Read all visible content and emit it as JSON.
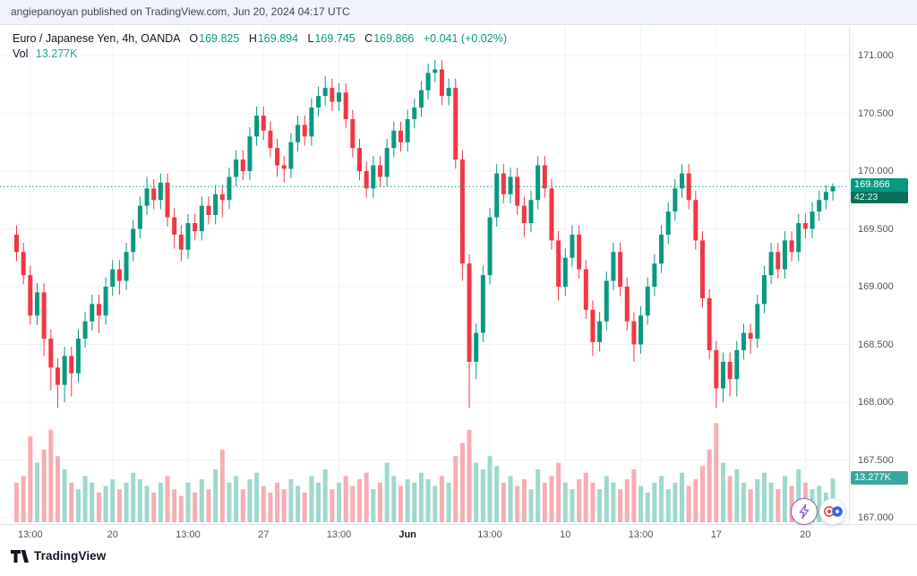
{
  "attribution": {
    "text": "angiepanoyan published on TradingView.com, Jun 20, 2024 04:17 UTC"
  },
  "legend": {
    "symbol": "Euro / Japanese Yen, 4h, OANDA",
    "open_label": "O",
    "open": "169.825",
    "high_label": "H",
    "high": "169.894",
    "low_label": "L",
    "low": "169.745",
    "close_label": "C",
    "close": "169.866",
    "change": "+0.041 (+0.02%)",
    "vol_label": "Vol",
    "vol_value": "13.277K"
  },
  "badges": {
    "price_value": "169.866",
    "countdown": "42:23",
    "volume_value": "13.277K"
  },
  "footer": {
    "brand": "TradingView"
  },
  "colors": {
    "up": "#089981",
    "down": "#f23645",
    "vol_up": "#9ed9cd",
    "vol_down": "#f6aeb3",
    "grid": "#f0f3fa",
    "axis_border": "#e0e3eb",
    "price_badge": "#089981",
    "volume_badge": "#3aa6a0"
  },
  "chart_data": {
    "type": "candlestick",
    "title": "Euro / Japanese Yen, 4h, OANDA",
    "interval": "4h",
    "last_price": 169.866,
    "last_volume_label": "13.277K",
    "price_range": [
      167.0,
      171.0
    ],
    "y_ticks": [
      {
        "label": "171.000",
        "value": 171.0
      },
      {
        "label": "170.500",
        "value": 170.5
      },
      {
        "label": "170.000",
        "value": 170.0
      },
      {
        "label": "169.500",
        "value": 169.5
      },
      {
        "label": "169.000",
        "value": 169.0
      },
      {
        "label": "168.500",
        "value": 168.5
      },
      {
        "label": "168.000",
        "value": 168.0
      },
      {
        "label": "167.500",
        "value": 167.5
      },
      {
        "label": "167.000",
        "value": 167.0
      }
    ],
    "time_ticks": [
      {
        "label": "13:00",
        "idx": 2
      },
      {
        "label": "20",
        "idx": 14
      },
      {
        "label": "13:00",
        "idx": 25
      },
      {
        "label": "27",
        "idx": 36
      },
      {
        "label": "13:00",
        "idx": 47
      },
      {
        "label": "Jun",
        "idx": 57,
        "bold": true
      },
      {
        "label": "13:00",
        "idx": 69
      },
      {
        "label": "10",
        "idx": 80
      },
      {
        "label": "13:00",
        "idx": 91
      },
      {
        "label": "17",
        "idx": 102
      },
      {
        "label": "20",
        "idx": 115
      }
    ],
    "candles": [
      [
        169.45,
        169.53,
        169.22,
        169.3
      ],
      [
        169.3,
        169.38,
        169.02,
        169.1
      ],
      [
        169.1,
        169.18,
        168.67,
        168.75
      ],
      [
        168.75,
        169.03,
        168.67,
        168.95
      ],
      [
        168.95,
        169.03,
        168.4,
        168.55
      ],
      [
        168.55,
        168.63,
        168.1,
        168.3
      ],
      [
        168.3,
        168.38,
        167.95,
        168.15
      ],
      [
        168.15,
        168.48,
        168.0,
        168.4
      ],
      [
        168.4,
        168.48,
        168.05,
        168.25
      ],
      [
        168.25,
        168.63,
        168.17,
        168.55
      ],
      [
        168.55,
        168.78,
        168.47,
        168.7
      ],
      [
        168.7,
        168.93,
        168.62,
        168.85
      ],
      [
        168.85,
        168.93,
        168.6,
        168.75
      ],
      [
        168.75,
        169.08,
        168.67,
        169.0
      ],
      [
        169.0,
        169.23,
        168.92,
        169.15
      ],
      [
        169.15,
        169.23,
        168.93,
        169.05
      ],
      [
        169.05,
        169.38,
        168.97,
        169.3
      ],
      [
        169.3,
        169.58,
        169.22,
        169.5
      ],
      [
        169.5,
        169.78,
        169.42,
        169.7
      ],
      [
        169.7,
        169.95,
        169.62,
        169.85
      ],
      [
        169.85,
        169.93,
        169.67,
        169.75
      ],
      [
        169.75,
        169.98,
        169.67,
        169.9
      ],
      [
        169.9,
        169.98,
        169.52,
        169.6
      ],
      [
        169.6,
        169.68,
        169.33,
        169.45
      ],
      [
        169.45,
        169.53,
        169.22,
        169.32
      ],
      [
        169.32,
        169.63,
        169.24,
        169.55
      ],
      [
        169.55,
        169.63,
        169.4,
        169.48
      ],
      [
        169.48,
        169.78,
        169.4,
        169.7
      ],
      [
        169.7,
        169.78,
        169.54,
        169.62
      ],
      [
        169.62,
        169.88,
        169.54,
        169.8
      ],
      [
        169.8,
        169.88,
        169.6,
        169.75
      ],
      [
        169.75,
        170.03,
        169.67,
        169.95
      ],
      [
        169.95,
        170.18,
        169.87,
        170.1
      ],
      [
        170.1,
        170.18,
        169.92,
        170.0
      ],
      [
        170.0,
        170.38,
        169.92,
        170.3
      ],
      [
        170.3,
        170.56,
        170.22,
        170.48
      ],
      [
        170.48,
        170.56,
        170.27,
        170.35
      ],
      [
        170.35,
        170.43,
        170.12,
        170.2
      ],
      [
        170.2,
        170.28,
        169.95,
        170.05
      ],
      [
        170.05,
        170.13,
        169.9,
        170.02
      ],
      [
        170.02,
        170.33,
        169.94,
        170.25
      ],
      [
        170.25,
        170.48,
        170.17,
        170.4
      ],
      [
        170.4,
        170.48,
        170.22,
        170.3
      ],
      [
        170.3,
        170.63,
        170.22,
        170.55
      ],
      [
        170.55,
        170.73,
        170.47,
        170.65
      ],
      [
        170.65,
        170.82,
        170.57,
        170.72
      ],
      [
        170.72,
        170.8,
        170.52,
        170.6
      ],
      [
        170.6,
        170.76,
        170.52,
        170.68
      ],
      [
        170.68,
        170.76,
        170.37,
        170.45
      ],
      [
        170.45,
        170.53,
        170.12,
        170.2
      ],
      [
        170.2,
        170.28,
        169.92,
        170.0
      ],
      [
        170.0,
        170.08,
        169.77,
        169.85
      ],
      [
        169.85,
        170.13,
        169.77,
        170.05
      ],
      [
        170.05,
        170.13,
        169.87,
        169.95
      ],
      [
        169.95,
        170.28,
        169.87,
        170.2
      ],
      [
        170.2,
        170.43,
        170.12,
        170.35
      ],
      [
        170.35,
        170.43,
        170.17,
        170.25
      ],
      [
        170.25,
        170.53,
        170.17,
        170.45
      ],
      [
        170.45,
        170.63,
        170.37,
        170.55
      ],
      [
        170.55,
        170.78,
        170.47,
        170.7
      ],
      [
        170.7,
        170.93,
        170.62,
        170.85
      ],
      [
        170.85,
        170.96,
        170.77,
        170.88
      ],
      [
        170.88,
        170.96,
        170.57,
        170.65
      ],
      [
        170.65,
        170.8,
        170.57,
        170.72
      ],
      [
        170.72,
        170.8,
        170.02,
        170.1
      ],
      [
        170.1,
        170.18,
        169.05,
        169.2
      ],
      [
        169.2,
        169.28,
        167.95,
        168.35
      ],
      [
        168.35,
        168.68,
        168.2,
        168.6
      ],
      [
        168.6,
        169.18,
        168.52,
        169.1
      ],
      [
        169.1,
        169.68,
        169.02,
        169.6
      ],
      [
        169.6,
        170.06,
        169.52,
        169.98
      ],
      [
        169.98,
        170.06,
        169.72,
        169.8
      ],
      [
        169.8,
        170.03,
        169.72,
        169.95
      ],
      [
        169.95,
        170.03,
        169.62,
        169.7
      ],
      [
        169.7,
        169.78,
        169.43,
        169.55
      ],
      [
        169.55,
        169.83,
        169.47,
        169.75
      ],
      [
        169.75,
        170.13,
        169.67,
        170.05
      ],
      [
        170.05,
        170.13,
        169.77,
        169.85
      ],
      [
        169.85,
        169.93,
        169.32,
        169.4
      ],
      [
        169.4,
        169.48,
        168.88,
        169.0
      ],
      [
        169.0,
        169.33,
        168.92,
        169.25
      ],
      [
        169.25,
        169.53,
        169.17,
        169.45
      ],
      [
        169.45,
        169.53,
        169.07,
        169.15
      ],
      [
        169.15,
        169.23,
        168.72,
        168.8
      ],
      [
        168.8,
        168.88,
        168.4,
        168.52
      ],
      [
        168.52,
        168.78,
        168.44,
        168.7
      ],
      [
        168.7,
        169.13,
        168.62,
        169.05
      ],
      [
        169.05,
        169.38,
        168.97,
        169.3
      ],
      [
        169.3,
        169.38,
        168.92,
        169.0
      ],
      [
        169.0,
        169.08,
        168.62,
        168.7
      ],
      [
        168.7,
        168.78,
        168.35,
        168.5
      ],
      [
        168.5,
        168.83,
        168.42,
        168.75
      ],
      [
        168.75,
        169.08,
        168.67,
        169.0
      ],
      [
        169.0,
        169.28,
        168.92,
        169.2
      ],
      [
        169.2,
        169.53,
        169.12,
        169.45
      ],
      [
        169.45,
        169.73,
        169.37,
        169.65
      ],
      [
        169.65,
        169.93,
        169.57,
        169.85
      ],
      [
        169.85,
        170.06,
        169.77,
        169.98
      ],
      [
        169.98,
        170.06,
        169.67,
        169.75
      ],
      [
        169.75,
        169.83,
        169.32,
        169.4
      ],
      [
        169.4,
        169.48,
        168.82,
        168.9
      ],
      [
        168.9,
        168.98,
        168.37,
        168.45
      ],
      [
        168.45,
        168.53,
        167.95,
        168.12
      ],
      [
        168.12,
        168.43,
        168.0,
        168.35
      ],
      [
        168.35,
        168.43,
        168.05,
        168.2
      ],
      [
        168.2,
        168.53,
        168.05,
        168.45
      ],
      [
        168.45,
        168.68,
        168.37,
        168.6
      ],
      [
        168.6,
        168.68,
        168.42,
        168.55
      ],
      [
        168.55,
        168.93,
        168.47,
        168.85
      ],
      [
        168.85,
        169.18,
        168.77,
        169.1
      ],
      [
        169.1,
        169.38,
        169.02,
        169.3
      ],
      [
        169.3,
        169.38,
        169.07,
        169.15
      ],
      [
        169.15,
        169.48,
        169.07,
        169.4
      ],
      [
        169.4,
        169.48,
        169.22,
        169.3
      ],
      [
        169.3,
        169.63,
        169.22,
        169.55
      ],
      [
        169.55,
        169.63,
        169.42,
        169.5
      ],
      [
        169.5,
        169.73,
        169.42,
        169.65
      ],
      [
        169.65,
        169.83,
        169.57,
        169.75
      ],
      [
        169.75,
        169.88,
        169.67,
        169.82
      ],
      [
        169.825,
        169.894,
        169.745,
        169.866
      ]
    ],
    "volumes": [
      12,
      14,
      26,
      18,
      22,
      28,
      20,
      16,
      12,
      10,
      14,
      12,
      9,
      11,
      13,
      10,
      12,
      15,
      13,
      11,
      9,
      12,
      14,
      10,
      8,
      12,
      9,
      13,
      10,
      16,
      22,
      12,
      14,
      10,
      13,
      15,
      11,
      9,
      12,
      10,
      13,
      11,
      9,
      14,
      12,
      16,
      10,
      12,
      14,
      11,
      13,
      15,
      10,
      12,
      18,
      14,
      11,
      13,
      12,
      15,
      13,
      11,
      14,
      12,
      20,
      24,
      28,
      18,
      16,
      20,
      17,
      12,
      14,
      11,
      13,
      10,
      16,
      12,
      14,
      18,
      12,
      10,
      13,
      15,
      12,
      10,
      14,
      12,
      10,
      13,
      16,
      11,
      9,
      12,
      14,
      10,
      12,
      15,
      11,
      13,
      17,
      22,
      30,
      18,
      14,
      16,
      12,
      10,
      13,
      15,
      12,
      10,
      14,
      11,
      16,
      12,
      10,
      11,
      9,
      13.277
    ]
  }
}
